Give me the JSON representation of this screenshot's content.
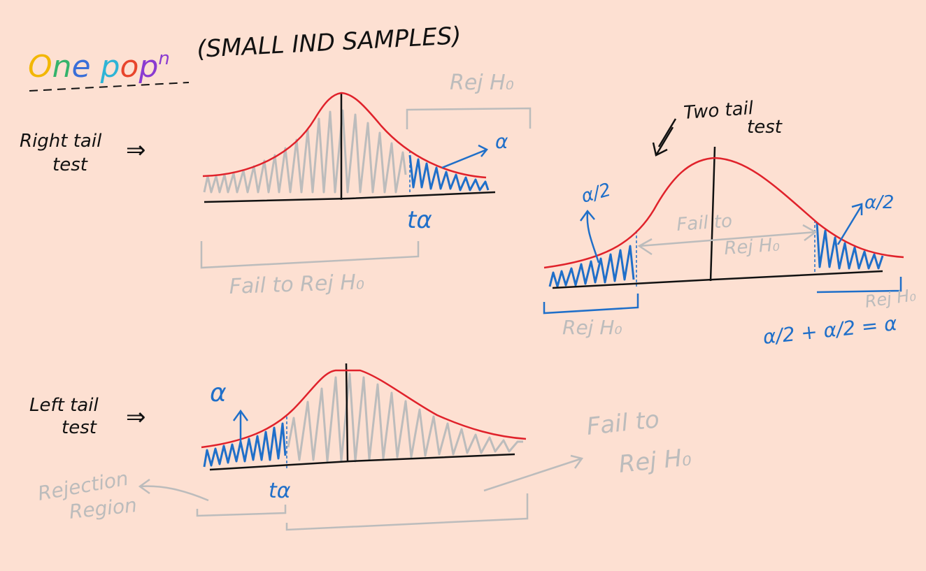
{
  "title": {
    "one_pop_letters": [
      "O",
      "n",
      "e",
      " ",
      "p",
      "o",
      "p",
      "n"
    ],
    "one_pop_colors": [
      "#f2b705",
      "#35b36b",
      "#3a6fd8",
      "#000000",
      "#2eb4d6",
      "#e8452c",
      "#8a3bd1",
      "#8a3bd1"
    ],
    "subtitle": "(SMALL IND SAMPLES)"
  },
  "right_tail": {
    "label_line1": "Right tail",
    "label_line2": "test",
    "implies": "⇒",
    "alpha": "α",
    "crit": "tα",
    "rej_label": "Rej H₀",
    "fail_label": "Fail to Rej H₀"
  },
  "two_tail": {
    "label_line1": "Two tail",
    "label_line2": "test",
    "alpha_half_left": "α/2",
    "alpha_half_right": "α/2",
    "fail_line1": "Fail to",
    "fail_line2": "Rej H₀",
    "rej_left": "Rej H₀",
    "rej_right": "Rej H₀",
    "equation": "α/2 + α/2 = α"
  },
  "left_tail": {
    "label_line1": "Left tail",
    "label_line2": "test",
    "implies": "⇒",
    "alpha": "α",
    "crit": "tα",
    "rej_line1": "Rejection",
    "rej_line2": "Region",
    "fail_line1": "Fail to",
    "fail_line2": "Rej H₀"
  }
}
